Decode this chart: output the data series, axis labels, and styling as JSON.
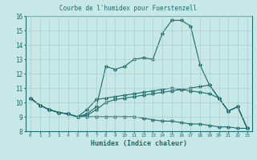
{
  "title": "Courbe de l'humidex pour Fuerstenzell",
  "xlabel": "Humidex (Indice chaleur)",
  "xlim": [
    -0.5,
    23.5
  ],
  "ylim": [
    8,
    16
  ],
  "xtick_labels": [
    "0",
    "1",
    "2",
    "3",
    "4",
    "5",
    "6",
    "7",
    "8",
    "9",
    "10",
    "11",
    "12",
    "13",
    "14",
    "15",
    "16",
    "17",
    "18",
    "19",
    "20",
    "21",
    "22",
    "23"
  ],
  "xtick_pos": [
    0,
    1,
    2,
    3,
    4,
    5,
    6,
    7,
    8,
    9,
    10,
    11,
    12,
    13,
    14,
    15,
    16,
    17,
    18,
    19,
    20,
    21,
    22,
    23
  ],
  "yticks": [
    8,
    9,
    10,
    11,
    12,
    13,
    14,
    15,
    16
  ],
  "bg_color": "#c8e8e8",
  "grid_color": "#a8cccc",
  "line_color": "#1a6b6b",
  "line1_y": [
    10.3,
    9.8,
    9.5,
    9.3,
    9.2,
    9.0,
    9.1,
    9.5,
    10.0,
    10.2,
    10.3,
    10.4,
    10.5,
    10.6,
    10.7,
    10.8,
    10.9,
    11.0,
    11.1,
    11.2,
    10.3,
    9.4,
    9.7,
    8.2
  ],
  "line2_y": [
    10.3,
    9.8,
    9.5,
    9.3,
    9.2,
    9.0,
    9.2,
    9.7,
    12.5,
    12.3,
    12.5,
    13.0,
    13.1,
    13.0,
    14.8,
    15.7,
    15.7,
    15.3,
    12.6,
    11.2,
    10.3,
    9.4,
    9.7,
    8.2
  ],
  "line3_y": [
    10.3,
    9.8,
    9.5,
    9.3,
    9.2,
    9.0,
    9.5,
    10.2,
    10.3,
    10.4,
    10.5,
    10.6,
    10.7,
    10.8,
    10.9,
    11.0,
    10.9,
    10.8,
    10.7,
    10.6,
    10.3,
    9.4,
    9.7,
    8.2
  ],
  "line4_y": [
    10.3,
    9.8,
    9.5,
    9.3,
    9.2,
    9.0,
    9.0,
    9.0,
    9.0,
    9.0,
    9.0,
    9.0,
    8.9,
    8.8,
    8.7,
    8.7,
    8.6,
    8.5,
    8.5,
    8.4,
    8.3,
    8.3,
    8.2,
    8.2
  ]
}
